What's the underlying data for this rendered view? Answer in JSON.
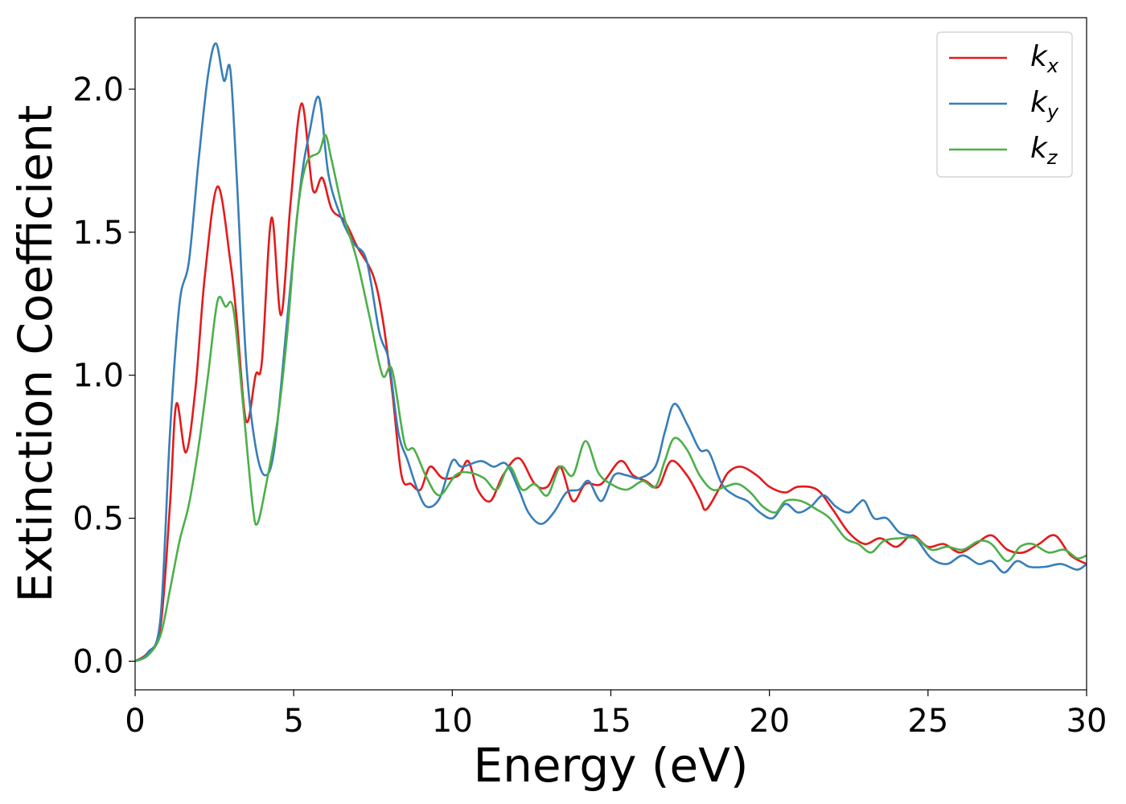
{
  "chart_data": {
    "type": "line",
    "xlabel": "Energy (eV)",
    "ylabel": "Extinction Coefficient",
    "xlim": [
      0,
      30
    ],
    "ylim": [
      -0.1,
      2.25
    ],
    "xticks": [
      0,
      5,
      10,
      15,
      20,
      25,
      30
    ],
    "xtick_labels": [
      "0",
      "5",
      "10",
      "15",
      "20",
      "25",
      "30"
    ],
    "yticks": [
      0.0,
      0.5,
      1.0,
      1.5,
      2.0
    ],
    "ytick_labels": [
      "0.0",
      "0.5",
      "1.0",
      "1.5",
      "2.0"
    ],
    "grid": false,
    "legend_position": "top-right",
    "series": [
      {
        "name": "k",
        "sub": "x",
        "color": "#e41a1c",
        "points": [
          [
            0,
            0
          ],
          [
            0.4,
            0.03
          ],
          [
            0.8,
            0.12
          ],
          [
            1.1,
            0.55
          ],
          [
            1.3,
            0.9
          ],
          [
            1.6,
            0.73
          ],
          [
            1.9,
            0.95
          ],
          [
            2.2,
            1.35
          ],
          [
            2.6,
            1.66
          ],
          [
            3.0,
            1.4
          ],
          [
            3.2,
            1.2
          ],
          [
            3.5,
            0.84
          ],
          [
            3.8,
            1.0
          ],
          [
            4.0,
            1.05
          ],
          [
            4.3,
            1.55
          ],
          [
            4.6,
            1.21
          ],
          [
            4.9,
            1.6
          ],
          [
            5.25,
            1.95
          ],
          [
            5.6,
            1.65
          ],
          [
            5.9,
            1.69
          ],
          [
            6.2,
            1.58
          ],
          [
            6.6,
            1.54
          ],
          [
            7.0,
            1.45
          ],
          [
            7.5,
            1.35
          ],
          [
            7.8,
            1.2
          ],
          [
            8.1,
            0.95
          ],
          [
            8.4,
            0.65
          ],
          [
            8.7,
            0.62
          ],
          [
            9.0,
            0.6
          ],
          [
            9.3,
            0.68
          ],
          [
            9.7,
            0.64
          ],
          [
            10.2,
            0.65
          ],
          [
            10.5,
            0.7
          ],
          [
            10.8,
            0.6
          ],
          [
            11.2,
            0.56
          ],
          [
            11.6,
            0.65
          ],
          [
            12.1,
            0.71
          ],
          [
            12.6,
            0.62
          ],
          [
            13.0,
            0.61
          ],
          [
            13.4,
            0.68
          ],
          [
            13.8,
            0.56
          ],
          [
            14.2,
            0.62
          ],
          [
            14.7,
            0.62
          ],
          [
            15.3,
            0.7
          ],
          [
            15.7,
            0.65
          ],
          [
            16.1,
            0.63
          ],
          [
            16.5,
            0.61
          ],
          [
            16.9,
            0.7
          ],
          [
            17.4,
            0.65
          ],
          [
            17.8,
            0.57
          ],
          [
            18.0,
            0.53
          ],
          [
            18.4,
            0.6
          ],
          [
            18.7,
            0.66
          ],
          [
            19.1,
            0.68
          ],
          [
            19.6,
            0.65
          ],
          [
            20.0,
            0.61
          ],
          [
            20.5,
            0.59
          ],
          [
            20.9,
            0.61
          ],
          [
            21.5,
            0.6
          ],
          [
            22.0,
            0.53
          ],
          [
            22.5,
            0.45
          ],
          [
            23.0,
            0.41
          ],
          [
            23.5,
            0.43
          ],
          [
            24.0,
            0.4
          ],
          [
            24.5,
            0.44
          ],
          [
            25.0,
            0.4
          ],
          [
            25.5,
            0.41
          ],
          [
            26.0,
            0.38
          ],
          [
            26.5,
            0.41
          ],
          [
            27.0,
            0.44
          ],
          [
            27.5,
            0.39
          ],
          [
            28.0,
            0.38
          ],
          [
            28.5,
            0.41
          ],
          [
            29.0,
            0.44
          ],
          [
            29.5,
            0.37
          ],
          [
            30.0,
            0.34
          ]
        ]
      },
      {
        "name": "k",
        "sub": "y",
        "color": "#377eb8",
        "points": [
          [
            0,
            0
          ],
          [
            0.4,
            0.03
          ],
          [
            0.8,
            0.15
          ],
          [
            1.1,
            0.8
          ],
          [
            1.4,
            1.25
          ],
          [
            1.7,
            1.4
          ],
          [
            2.0,
            1.75
          ],
          [
            2.3,
            2.05
          ],
          [
            2.55,
            2.16
          ],
          [
            2.8,
            2.03
          ],
          [
            3.0,
            2.07
          ],
          [
            3.2,
            1.7
          ],
          [
            3.5,
            1.05
          ],
          [
            3.8,
            0.75
          ],
          [
            4.1,
            0.65
          ],
          [
            4.4,
            0.75
          ],
          [
            4.8,
            1.2
          ],
          [
            5.2,
            1.65
          ],
          [
            5.5,
            1.85
          ],
          [
            5.8,
            1.97
          ],
          [
            6.1,
            1.7
          ],
          [
            6.5,
            1.55
          ],
          [
            6.9,
            1.46
          ],
          [
            7.3,
            1.4
          ],
          [
            7.7,
            1.15
          ],
          [
            8.0,
            1.05
          ],
          [
            8.3,
            0.8
          ],
          [
            8.6,
            0.7
          ],
          [
            8.9,
            0.6
          ],
          [
            9.2,
            0.54
          ],
          [
            9.6,
            0.57
          ],
          [
            10.0,
            0.7
          ],
          [
            10.3,
            0.68
          ],
          [
            10.9,
            0.7
          ],
          [
            11.3,
            0.68
          ],
          [
            11.7,
            0.69
          ],
          [
            12.1,
            0.6
          ],
          [
            12.4,
            0.52
          ],
          [
            12.8,
            0.48
          ],
          [
            13.2,
            0.52
          ],
          [
            13.6,
            0.59
          ],
          [
            14.0,
            0.6
          ],
          [
            14.3,
            0.63
          ],
          [
            14.7,
            0.56
          ],
          [
            15.1,
            0.65
          ],
          [
            15.5,
            0.65
          ],
          [
            15.9,
            0.64
          ],
          [
            16.4,
            0.68
          ],
          [
            16.7,
            0.8
          ],
          [
            17.0,
            0.9
          ],
          [
            17.4,
            0.83
          ],
          [
            17.8,
            0.74
          ],
          [
            18.1,
            0.73
          ],
          [
            18.5,
            0.62
          ],
          [
            18.9,
            0.58
          ],
          [
            19.3,
            0.56
          ],
          [
            19.7,
            0.52
          ],
          [
            20.1,
            0.5
          ],
          [
            20.5,
            0.55
          ],
          [
            20.9,
            0.52
          ],
          [
            21.3,
            0.54
          ],
          [
            21.7,
            0.58
          ],
          [
            22.1,
            0.54
          ],
          [
            22.5,
            0.52
          ],
          [
            22.8,
            0.55
          ],
          [
            23.0,
            0.56
          ],
          [
            23.3,
            0.5
          ],
          [
            23.7,
            0.5
          ],
          [
            24.1,
            0.45
          ],
          [
            24.6,
            0.43
          ],
          [
            25.1,
            0.36
          ],
          [
            25.6,
            0.34
          ],
          [
            26.1,
            0.37
          ],
          [
            26.6,
            0.34
          ],
          [
            27.0,
            0.35
          ],
          [
            27.4,
            0.31
          ],
          [
            27.8,
            0.35
          ],
          [
            28.2,
            0.33
          ],
          [
            28.7,
            0.33
          ],
          [
            29.2,
            0.34
          ],
          [
            29.7,
            0.32
          ],
          [
            30.0,
            0.34
          ]
        ]
      },
      {
        "name": "k",
        "sub": "z",
        "color": "#4daf4a",
        "points": [
          [
            0,
            0
          ],
          [
            0.4,
            0.02
          ],
          [
            0.8,
            0.09
          ],
          [
            1.1,
            0.25
          ],
          [
            1.4,
            0.42
          ],
          [
            1.7,
            0.55
          ],
          [
            2.0,
            0.75
          ],
          [
            2.3,
            1.0
          ],
          [
            2.6,
            1.26
          ],
          [
            2.85,
            1.24
          ],
          [
            3.1,
            1.23
          ],
          [
            3.4,
            0.9
          ],
          [
            3.7,
            0.55
          ],
          [
            3.85,
            0.48
          ],
          [
            4.1,
            0.6
          ],
          [
            4.5,
            0.85
          ],
          [
            4.8,
            1.15
          ],
          [
            5.1,
            1.55
          ],
          [
            5.4,
            1.74
          ],
          [
            5.8,
            1.78
          ],
          [
            6.0,
            1.84
          ],
          [
            6.2,
            1.75
          ],
          [
            6.6,
            1.55
          ],
          [
            7.0,
            1.4
          ],
          [
            7.4,
            1.2
          ],
          [
            7.8,
            1.0
          ],
          [
            8.1,
            1.02
          ],
          [
            8.5,
            0.76
          ],
          [
            8.8,
            0.74
          ],
          [
            9.2,
            0.64
          ],
          [
            9.6,
            0.58
          ],
          [
            10.1,
            0.65
          ],
          [
            10.5,
            0.66
          ],
          [
            11.0,
            0.64
          ],
          [
            11.4,
            0.6
          ],
          [
            11.8,
            0.68
          ],
          [
            12.2,
            0.6
          ],
          [
            12.6,
            0.62
          ],
          [
            13.0,
            0.58
          ],
          [
            13.4,
            0.68
          ],
          [
            13.8,
            0.65
          ],
          [
            14.2,
            0.77
          ],
          [
            14.6,
            0.66
          ],
          [
            15.0,
            0.62
          ],
          [
            15.5,
            0.6
          ],
          [
            16.0,
            0.63
          ],
          [
            16.4,
            0.61
          ],
          [
            16.7,
            0.7
          ],
          [
            17.0,
            0.78
          ],
          [
            17.4,
            0.74
          ],
          [
            17.8,
            0.65
          ],
          [
            18.2,
            0.6
          ],
          [
            18.6,
            0.61
          ],
          [
            19.0,
            0.62
          ],
          [
            19.4,
            0.59
          ],
          [
            19.8,
            0.54
          ],
          [
            20.2,
            0.52
          ],
          [
            20.5,
            0.56
          ],
          [
            21.0,
            0.56
          ],
          [
            21.5,
            0.53
          ],
          [
            21.9,
            0.5
          ],
          [
            22.4,
            0.43
          ],
          [
            22.8,
            0.41
          ],
          [
            23.2,
            0.38
          ],
          [
            23.6,
            0.42
          ],
          [
            24.1,
            0.43
          ],
          [
            24.6,
            0.43
          ],
          [
            25.1,
            0.39
          ],
          [
            25.6,
            0.4
          ],
          [
            26.1,
            0.39
          ],
          [
            26.6,
            0.42
          ],
          [
            27.0,
            0.41
          ],
          [
            27.5,
            0.35
          ],
          [
            27.9,
            0.4
          ],
          [
            28.3,
            0.41
          ],
          [
            28.8,
            0.38
          ],
          [
            29.3,
            0.39
          ],
          [
            29.7,
            0.36
          ],
          [
            30.0,
            0.37
          ]
        ]
      }
    ]
  }
}
